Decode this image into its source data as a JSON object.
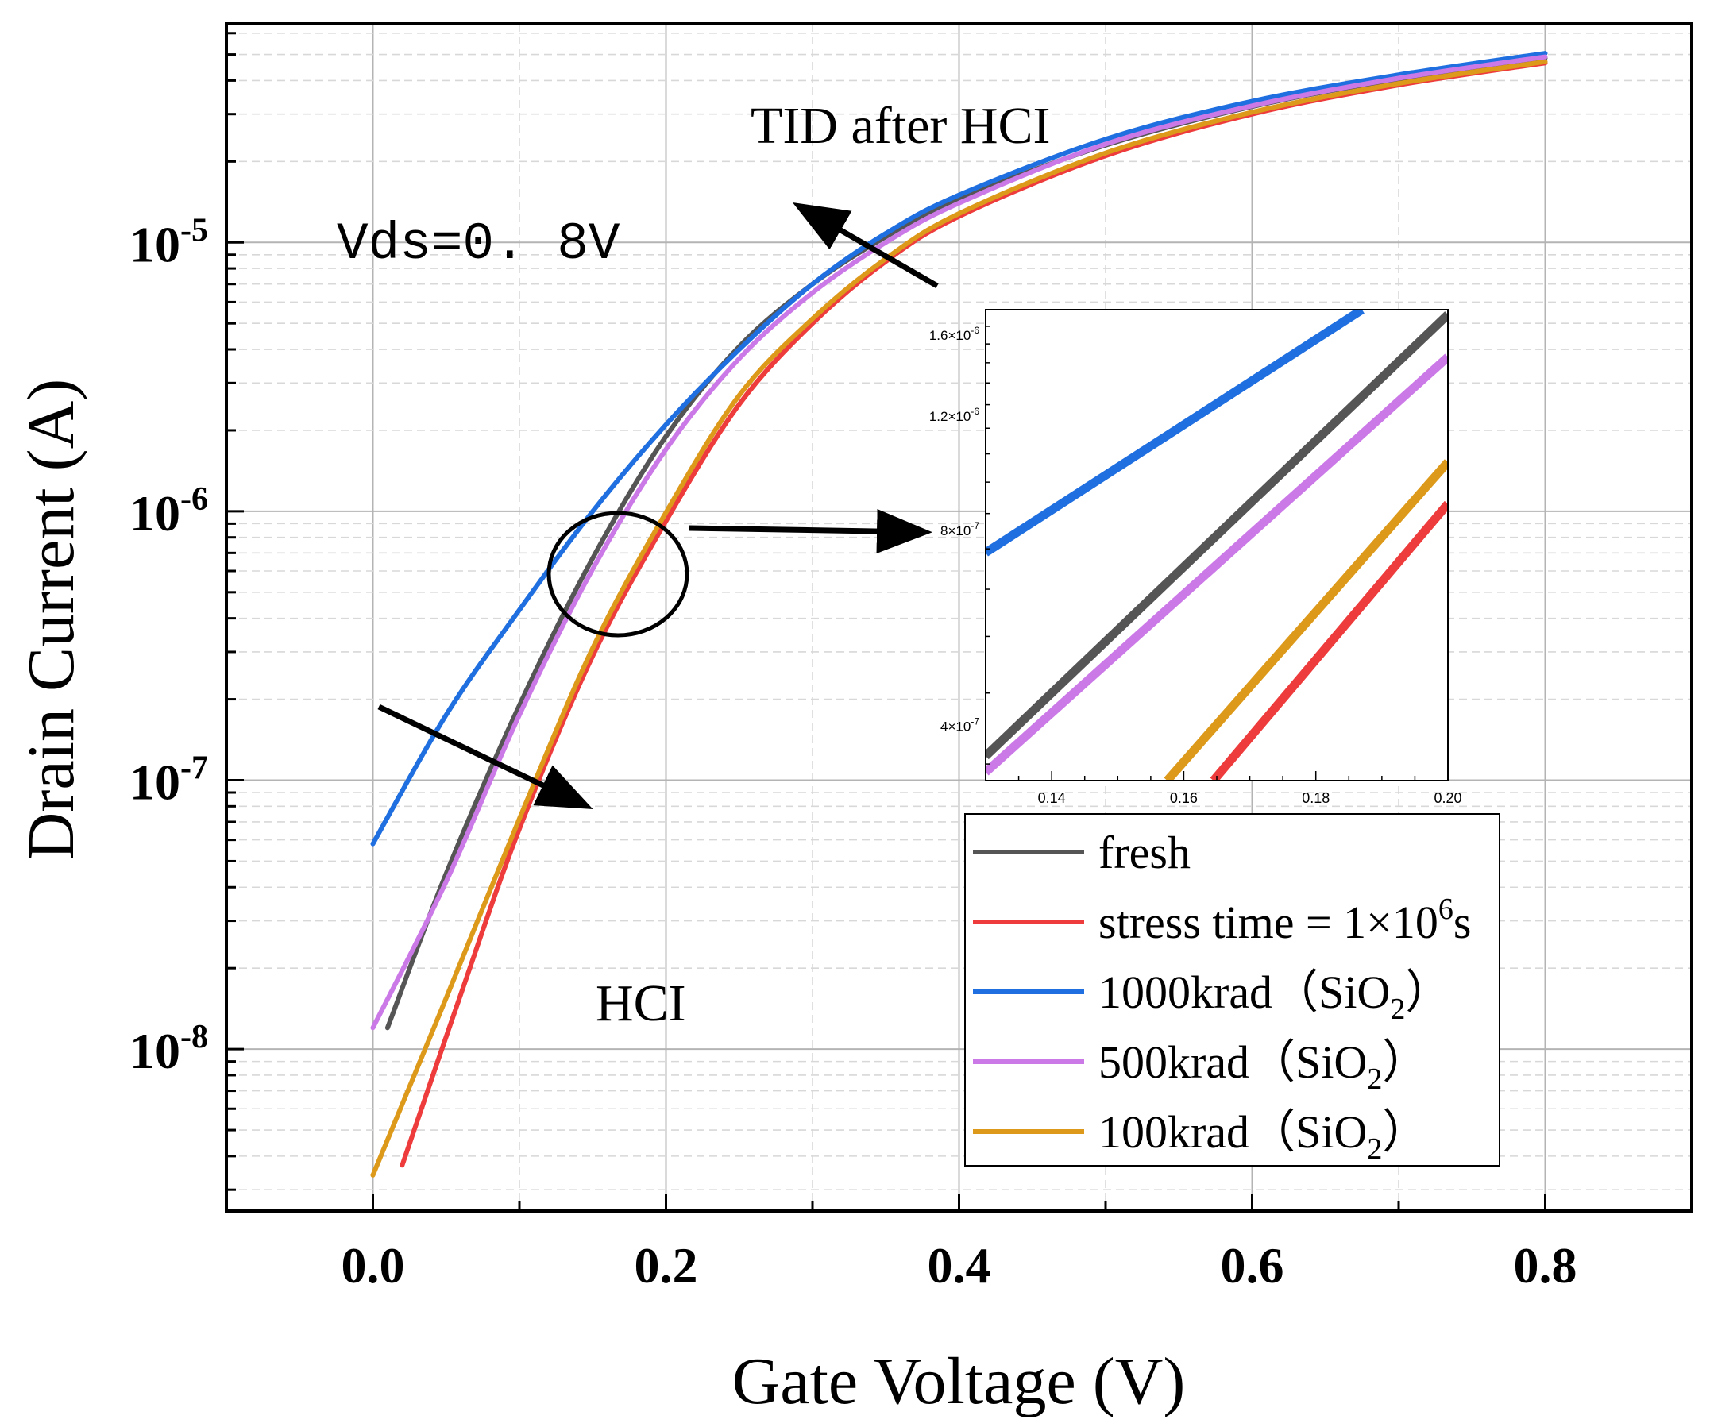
{
  "chart_data": [
    {
      "type": "line",
      "yscale": "log",
      "xlabel": "Gate Voltage (V)",
      "ylabel": "Drain Current (A)",
      "xlim": [
        -0.1,
        0.9
      ],
      "ylim": [
        2.5e-09,
        6.5e-05
      ],
      "xticks": [
        "0.0",
        "0.2",
        "0.4",
        "0.6",
        "0.8"
      ],
      "ytick_bases": [
        "10",
        "10",
        "10",
        "10"
      ],
      "ytick_exponents": [
        "-8",
        "-7",
        "-6",
        "-5"
      ],
      "ytick_values": [
        1e-08,
        1e-07,
        1e-06,
        1e-05
      ],
      "grid": true,
      "annotations": {
        "vds": "Vds=0. 8V",
        "tid": "TID after HCI",
        "hci": "HCI"
      },
      "legend": {
        "position": "lower-right",
        "entries": [
          {
            "label": "fresh"
          },
          {
            "label": "stress time = 1×10",
            "sup": "6",
            "tail": "s"
          },
          {
            "label": "1000krad（SiO",
            "sub": "2",
            "tail": "）"
          },
          {
            "label": "500krad（SiO",
            "sub": "2",
            "tail": "）"
          },
          {
            "label": "100krad（SiO",
            "sub": "2",
            "tail": "）"
          }
        ]
      },
      "series": [
        {
          "name": "fresh",
          "color": "#555555",
          "x": [
            0.01,
            0.05,
            0.1,
            0.15,
            0.2,
            0.25,
            0.3,
            0.35,
            0.4,
            0.5,
            0.6,
            0.7,
            0.8
          ],
          "y": [
            1.2e-08,
            4.5e-08,
            1.9e-07,
            6.7e-07,
            1.9e-06,
            4.1e-06,
            7e-06,
            1.05e-05,
            1.45e-05,
            2.3e-05,
            3.2e-05,
            4.05e-05,
            4.85e-05
          ]
        },
        {
          "name": "stress time = 1×10^6 s",
          "color": "#ee3b3b",
          "x": [
            0.02,
            0.06,
            0.1,
            0.15,
            0.2,
            0.25,
            0.3,
            0.35,
            0.4,
            0.5,
            0.6,
            0.7,
            0.8
          ],
          "y": [
            3.7e-09,
            1.6e-08,
            6.6e-08,
            2.9e-07,
            9.2e-07,
            2.5e-06,
            5e-06,
            8.5e-06,
            1.25e-05,
            2.1e-05,
            3e-05,
            3.85e-05,
            4.65e-05
          ]
        },
        {
          "name": "1000krad (SiO2)",
          "color": "#1f6fe0",
          "x": [
            0.0,
            0.05,
            0.1,
            0.15,
            0.2,
            0.25,
            0.3,
            0.35,
            0.4,
            0.5,
            0.6,
            0.7,
            0.8
          ],
          "y": [
            5.8e-08,
            1.75e-07,
            4.3e-07,
            1e-06,
            2.1e-06,
            4e-06,
            7e-06,
            1.08e-05,
            1.5e-05,
            2.42e-05,
            3.35e-05,
            4.2e-05,
            5.05e-05
          ]
        },
        {
          "name": "500krad (SiO2)",
          "color": "#cc79e8",
          "x": [
            0.0,
            0.05,
            0.1,
            0.15,
            0.2,
            0.25,
            0.3,
            0.35,
            0.4,
            0.5,
            0.6,
            0.7,
            0.8
          ],
          "y": [
            1.2e-08,
            4.2e-08,
            1.75e-07,
            6.1e-07,
            1.7e-06,
            3.7e-06,
            6.5e-06,
            1e-05,
            1.4e-05,
            2.32e-05,
            3.22e-05,
            4.08e-05,
            4.9e-05
          ]
        },
        {
          "name": "100krad (SiO2)",
          "color": "#dd9a1a",
          "x": [
            0.0,
            0.05,
            0.1,
            0.15,
            0.2,
            0.25,
            0.3,
            0.35,
            0.4,
            0.5,
            0.6,
            0.7,
            0.8
          ],
          "y": [
            3.4e-09,
            1.55e-08,
            7.2e-08,
            3.1e-07,
            9.9e-07,
            2.7e-06,
            5.2e-06,
            8.7e-06,
            1.28e-05,
            2.15e-05,
            3.05e-05,
            3.9e-05,
            4.7e-05
          ]
        }
      ]
    },
    {
      "type": "line",
      "role": "inset",
      "yscale": "log",
      "xlim": [
        0.13,
        0.2
      ],
      "ylim": [
        3.3e-07,
        1.75e-06
      ],
      "xticks": [
        "0.14",
        "0.16",
        "0.18",
        "0.20"
      ],
      "xtick_values": [
        0.14,
        0.16,
        0.18,
        0.2
      ],
      "ytick_bases": [
        "4×10",
        "8×10",
        "1.2×10",
        "1.6×10"
      ],
      "ytick_exponents": [
        "-7",
        "-7",
        "-6",
        "-6"
      ],
      "ytick_values": [
        4e-07,
        8e-07,
        1.2e-06,
        1.6e-06
      ],
      "series": [
        {
          "name": "fresh",
          "color": "#555555",
          "x": [
            0.13,
            0.2
          ],
          "y": [
            3.6e-07,
            1.72e-06
          ]
        },
        {
          "name": "stress time = 1×10^6 s",
          "color": "#ee3b3b",
          "x": [
            0.1645,
            0.2
          ],
          "y": [
            3.3e-07,
            8.8e-07
          ]
        },
        {
          "name": "1000krad (SiO2)",
          "color": "#1f6fe0",
          "x": [
            0.13,
            0.187
          ],
          "y": [
            7.4e-07,
            1.75e-06
          ]
        },
        {
          "name": "500krad (SiO2)",
          "color": "#cc79e8",
          "x": [
            0.13,
            0.2
          ],
          "y": [
            3.4e-07,
            1.48e-06
          ]
        },
        {
          "name": "100krad (SiO2)",
          "color": "#dd9a1a",
          "x": [
            0.1575,
            0.2
          ],
          "y": [
            3.3e-07,
            1.02e-06
          ]
        }
      ]
    }
  ]
}
